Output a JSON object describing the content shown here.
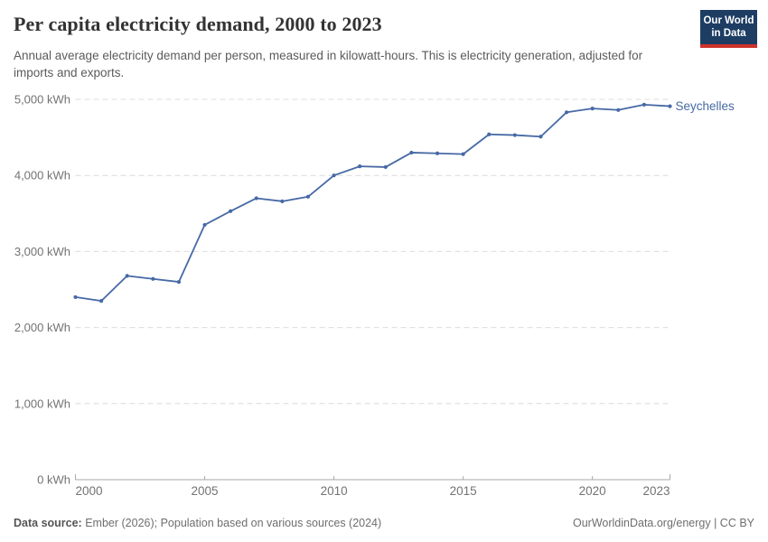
{
  "header": {
    "title": "Per capita electricity demand, 2000 to 2023",
    "subtitle": "Annual average electricity demand per person, measured in kilowatt-hours. This is electricity generation, adjusted for imports and exports.",
    "logo": {
      "line1": "Our World",
      "line2": "in Data"
    }
  },
  "chart_data": {
    "type": "line",
    "title": "Per capita electricity demand, 2000 to 2023",
    "x": [
      2000,
      2001,
      2002,
      2003,
      2004,
      2005,
      2006,
      2007,
      2008,
      2009,
      2010,
      2011,
      2012,
      2013,
      2014,
      2015,
      2016,
      2017,
      2018,
      2019,
      2020,
      2021,
      2022,
      2023
    ],
    "series": [
      {
        "name": "Seychelles",
        "color": "#4669A5",
        "values": [
          2400,
          2350,
          2680,
          2640,
          2600,
          3350,
          3530,
          3700,
          3660,
          3720,
          4000,
          4120,
          4110,
          4300,
          4290,
          4280,
          4540,
          4530,
          4510,
          4830,
          4880,
          4860,
          4930,
          4910
        ]
      }
    ],
    "xlabel": "",
    "ylabel": "",
    "xlim": [
      2000,
      2023
    ],
    "ylim": [
      0,
      5000
    ],
    "x_ticks": [
      2000,
      2005,
      2010,
      2015,
      2020,
      2023
    ],
    "y_ticks": [
      0,
      1000,
      2000,
      3000,
      4000,
      5000
    ],
    "y_tick_suffix": " kWh",
    "grid": "horizontal-dashed",
    "legend_position": "end-of-line-label",
    "colors": {
      "gridline": "#dcdcdc",
      "axis": "#a8a8a8",
      "tick_label": "#737373"
    }
  },
  "footer": {
    "datasource_label": "Data source:",
    "datasource_text": " Ember (2026); Population based on various sources (2024)",
    "right_text": "OurWorldinData.org/energy | CC BY"
  }
}
